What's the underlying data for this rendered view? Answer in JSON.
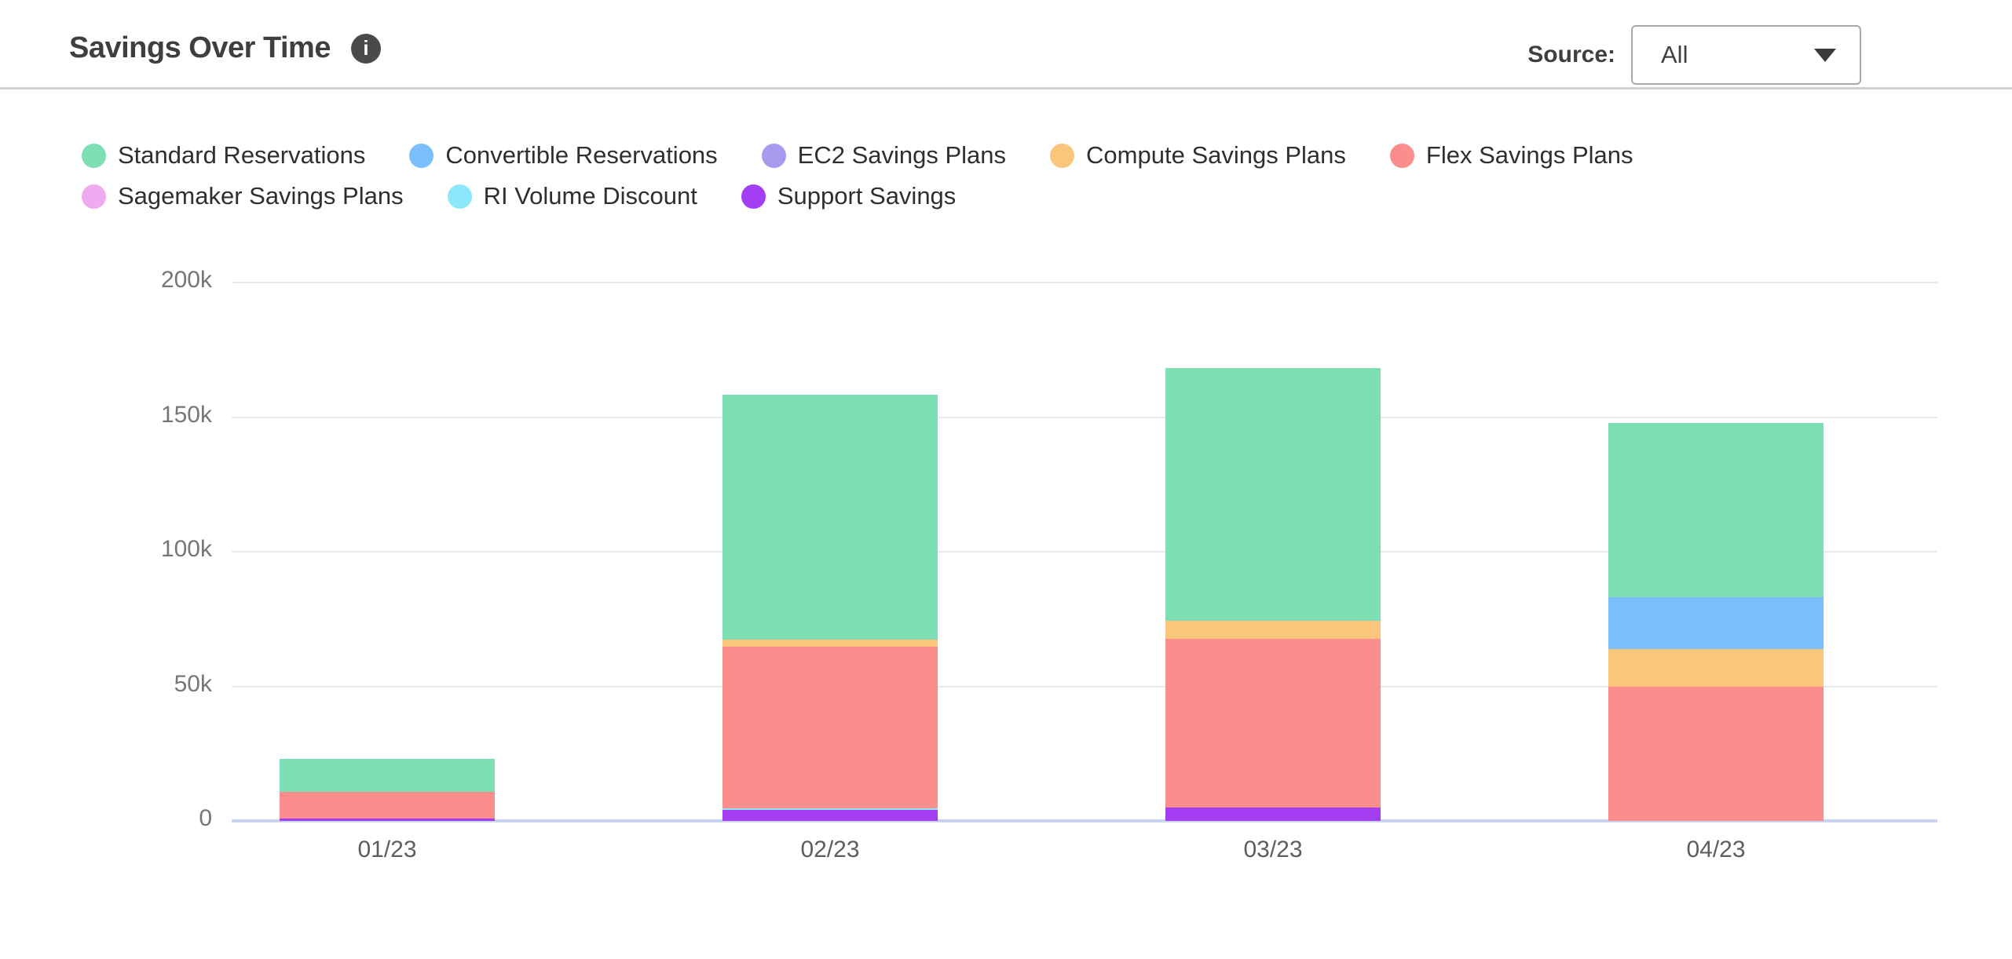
{
  "header": {
    "title": "Savings Over Time",
    "info_glyph": "i",
    "source_label": "Source:",
    "source_value": "All"
  },
  "chart_data": {
    "type": "bar",
    "stacked": true,
    "title": "Savings Over Time",
    "categories": [
      "01/23",
      "02/23",
      "03/23",
      "04/23"
    ],
    "values_unit": "thousands",
    "series": [
      {
        "name": "Standard Reservations",
        "color": "#7DDFB3",
        "values": [
          12.3,
          90.9,
          94.0,
          64.7
        ]
      },
      {
        "name": "Convertible Reservations",
        "color": "#7BBEFC",
        "values": [
          0,
          0,
          0,
          19.3
        ]
      },
      {
        "name": "EC2 Savings Plans",
        "color": "#A79BF0",
        "values": [
          0,
          0,
          0,
          0
        ]
      },
      {
        "name": "Compute Savings Plans",
        "color": "#F9C67C",
        "values": [
          0,
          2.6,
          6.6,
          13.9
        ]
      },
      {
        "name": "Flex Savings Plans",
        "color": "#FC8D8D",
        "values": [
          10.0,
          60.2,
          62.8,
          49.9
        ]
      },
      {
        "name": "Sagemaker Savings Plans",
        "color": "#F0AAF0",
        "values": [
          0,
          0,
          0,
          0
        ]
      },
      {
        "name": "RI Volume Discount",
        "color": "#8DE7FA",
        "values": [
          0,
          0.7,
          0,
          0
        ]
      },
      {
        "name": "Support Savings",
        "color": "#A43EF3",
        "values": [
          1.0,
          4.2,
          5.0,
          0
        ]
      }
    ],
    "stack_order_bottom_to_top": [
      "Support Savings",
      "RI Volume Discount",
      "Sagemaker Savings Plans",
      "Flex Savings Plans",
      "Compute Savings Plans",
      "EC2 Savings Plans",
      "Convertible Reservations",
      "Standard Reservations"
    ],
    "totals_thousands": [
      23.3,
      158.6,
      168.3,
      147.8
    ],
    "y_axis": {
      "ticks": [
        {
          "label": "0",
          "value": 0
        },
        {
          "label": "50k",
          "value": 50
        },
        {
          "label": "100k",
          "value": 100
        },
        {
          "label": "150k",
          "value": 150
        },
        {
          "label": "200k",
          "value": 200
        }
      ],
      "range": [
        0,
        200
      ]
    },
    "grid": true,
    "legend_position": "top"
  }
}
